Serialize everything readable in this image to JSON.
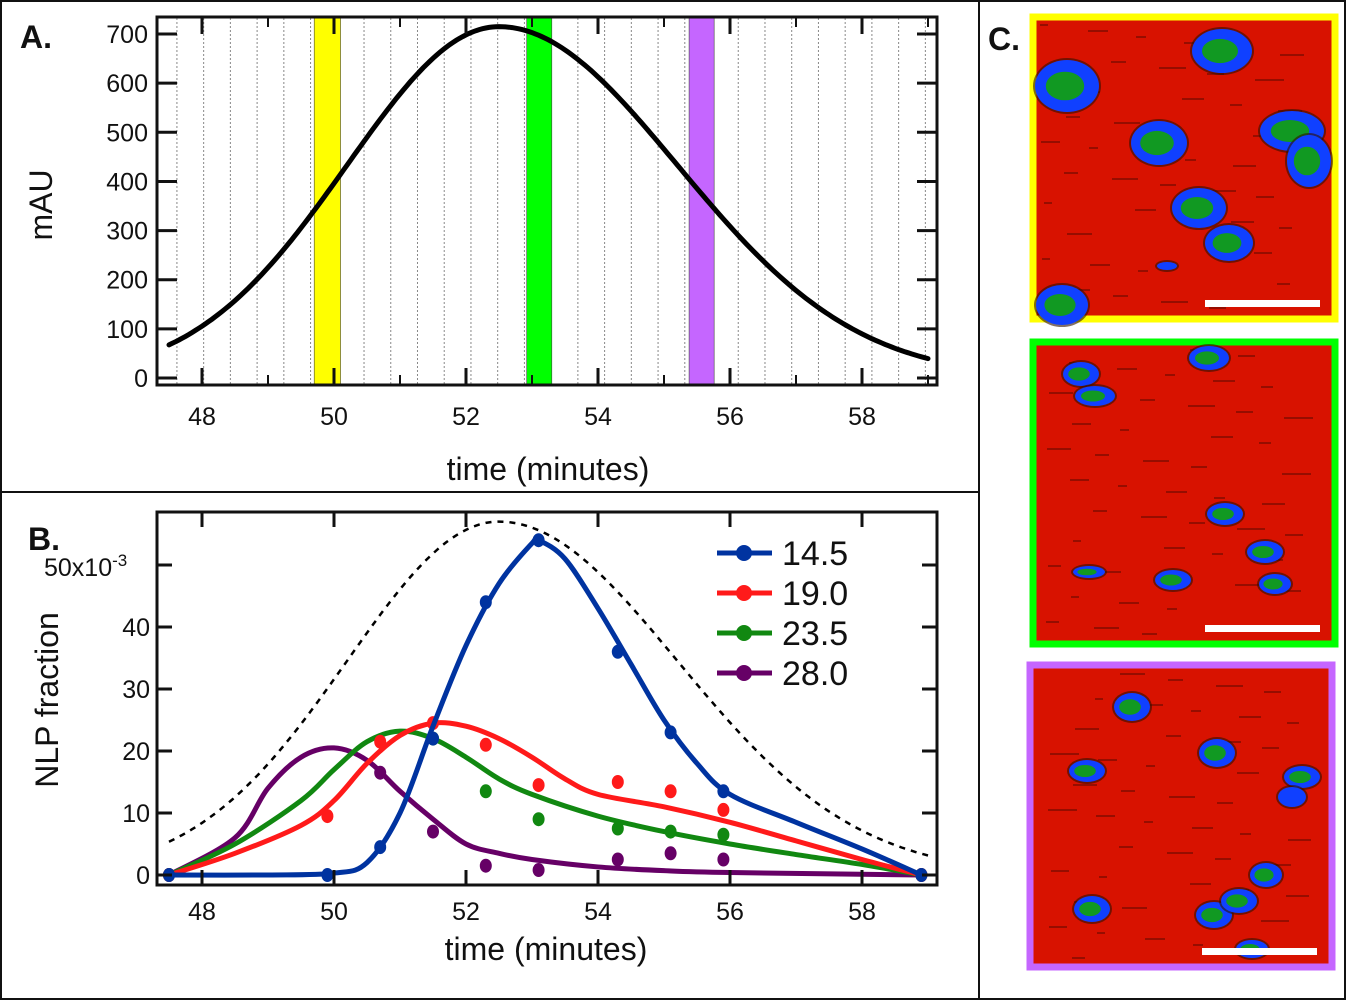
{
  "panel_labels": {
    "a": "A.",
    "b": "B.",
    "c": "C."
  },
  "colors": {
    "yellow": "#ffff00",
    "green": "#00ff00",
    "purple": "#c566ff",
    "s145": "#0033a0",
    "s190": "#ff1a1a",
    "s235": "#118811",
    "s280": "#660066",
    "afm_bg": "#d81200",
    "afm_blob": "#1040ff",
    "afm_core": "#119922"
  },
  "chart_data": [
    {
      "type": "line",
      "title": "",
      "xlabel": "time (minutes)",
      "ylabel": "mAU",
      "xlim": [
        47.3,
        59.1
      ],
      "ylim": [
        -15,
        735
      ],
      "xticks": [
        "48",
        "50",
        "52",
        "54",
        "56",
        "58"
      ],
      "yticks": [
        "0",
        "100",
        "200",
        "300",
        "400",
        "500",
        "600",
        "700"
      ],
      "grid": "vertical dotted lines every ~0.4 min",
      "series": [
        {
          "name": "chromatogram",
          "peak_x": 52.5,
          "peak_y": 715,
          "sigma_left": 2.3,
          "sigma_right": 2.7
        }
      ],
      "highlight_bands": [
        {
          "name": "yellow fraction",
          "x": [
            49.7,
            50.1
          ],
          "color": "yellow"
        },
        {
          "name": "green fraction",
          "x": [
            52.92,
            53.3
          ],
          "color": "green"
        },
        {
          "name": "purple fraction",
          "x": [
            55.38,
            55.76
          ],
          "color": "purple"
        }
      ]
    },
    {
      "type": "line",
      "title": "",
      "xlabel": "time (minutes)",
      "ylabel": "NLP fraction",
      "ytick_exponent_label": "50x10",
      "ytick_exponent_sup": "-3",
      "xlim": [
        47.3,
        59.1
      ],
      "ylim": [
        -1.6,
        58.5
      ],
      "xticks": [
        "48",
        "50",
        "52",
        "54",
        "56",
        "58"
      ],
      "yticks": [
        "0",
        "10",
        "20",
        "30",
        "40"
      ],
      "legend_position": "top-right",
      "reference_curve": "dashed scaled chromatogram (peak 57)",
      "series": [
        {
          "name": "14.5",
          "color": "s145",
          "points": [
            [
              47.5,
              0
            ],
            [
              49.9,
              0
            ],
            [
              50.7,
              4.5
            ],
            [
              51.5,
              22
            ],
            [
              52.3,
              44
            ],
            [
              53.1,
              54
            ],
            [
              54.3,
              36
            ],
            [
              55.1,
              23
            ],
            [
              55.9,
              13.5
            ],
            [
              58.9,
              0
            ]
          ],
          "fit": [
            [
              47.5,
              0
            ],
            [
              49,
              0
            ],
            [
              50,
              0.3
            ],
            [
              50.5,
              2
            ],
            [
              51,
              10
            ],
            [
              51.5,
              24
            ],
            [
              52,
              37
            ],
            [
              52.5,
              47
            ],
            [
              53,
              53.5
            ],
            [
              53.1,
              54
            ],
            [
              53.5,
              51
            ],
            [
              54,
              43
            ],
            [
              54.5,
              34
            ],
            [
              55,
              25
            ],
            [
              55.5,
              18
            ],
            [
              56,
              13
            ],
            [
              57,
              8.5
            ],
            [
              58,
              4.2
            ],
            [
              58.9,
              0
            ]
          ]
        },
        {
          "name": "19.0",
          "color": "s190",
          "points": [
            [
              47.5,
              0
            ],
            [
              49.9,
              9.5
            ],
            [
              50.7,
              21.5
            ],
            [
              51.5,
              24.5
            ],
            [
              52.3,
              21
            ],
            [
              53.1,
              14.5
            ],
            [
              54.3,
              15
            ],
            [
              55.1,
              13.5
            ],
            [
              55.9,
              10.5
            ],
            [
              58.9,
              0
            ]
          ],
          "fit": [
            [
              47.5,
              0
            ],
            [
              48.5,
              3.5
            ],
            [
              49.5,
              8
            ],
            [
              50,
              12
            ],
            [
              50.5,
              18
            ],
            [
              51,
              22.5
            ],
            [
              51.5,
              24.5
            ],
            [
              52,
              24
            ],
            [
              52.5,
              22
            ],
            [
              53,
              19
            ],
            [
              53.5,
              15.5
            ],
            [
              54,
              13
            ],
            [
              55,
              11
            ],
            [
              56,
              8.5
            ],
            [
              57,
              5.5
            ],
            [
              58,
              2.5
            ],
            [
              58.9,
              0
            ]
          ]
        },
        {
          "name": "23.5",
          "color": "s235",
          "points": [
            [
              47.5,
              0
            ],
            [
              51.5,
              22
            ],
            [
              52.3,
              13.5
            ],
            [
              53.1,
              9
            ],
            [
              54.3,
              7.5
            ],
            [
              55.1,
              7
            ],
            [
              55.9,
              6.5
            ],
            [
              58.9,
              0
            ]
          ],
          "fit": [
            [
              47.5,
              0
            ],
            [
              48.5,
              5
            ],
            [
              49.5,
              12
            ],
            [
              50,
              17
            ],
            [
              50.5,
              21.5
            ],
            [
              51,
              23.2
            ],
            [
              51.5,
              22
            ],
            [
              52,
              19
            ],
            [
              52.5,
              15.5
            ],
            [
              53,
              13
            ],
            [
              54,
              9.5
            ],
            [
              55,
              7
            ],
            [
              56,
              5
            ],
            [
              57,
              3.3
            ],
            [
              58,
              1.7
            ],
            [
              58.9,
              0
            ]
          ]
        },
        {
          "name": "28.0",
          "color": "s280",
          "points": [
            [
              47.5,
              0
            ],
            [
              50.7,
              16.5
            ],
            [
              51.5,
              7
            ],
            [
              52.3,
              1.5
            ],
            [
              53.1,
              0.8
            ],
            [
              54.3,
              2.5
            ],
            [
              55.1,
              3.5
            ],
            [
              55.9,
              2.5
            ],
            [
              58.9,
              0
            ]
          ],
          "fit": [
            [
              47.5,
              0
            ],
            [
              48.5,
              6
            ],
            [
              49,
              14
            ],
            [
              49.5,
              19
            ],
            [
              50,
              20.5
            ],
            [
              50.5,
              18.5
            ],
            [
              51,
              13.5
            ],
            [
              51.5,
              9
            ],
            [
              52,
              5
            ],
            [
              52.5,
              3.5
            ],
            [
              53,
              2.5
            ],
            [
              54,
              1.3
            ],
            [
              55,
              0.7
            ],
            [
              56,
              0.4
            ],
            [
              58.9,
              0
            ]
          ]
        }
      ]
    }
  ],
  "afm_images": [
    {
      "name": "yellow fraction AFM",
      "border": "yellow"
    },
    {
      "name": "green fraction AFM",
      "border": "green"
    },
    {
      "name": "purple fraction AFM",
      "border": "purple"
    }
  ]
}
